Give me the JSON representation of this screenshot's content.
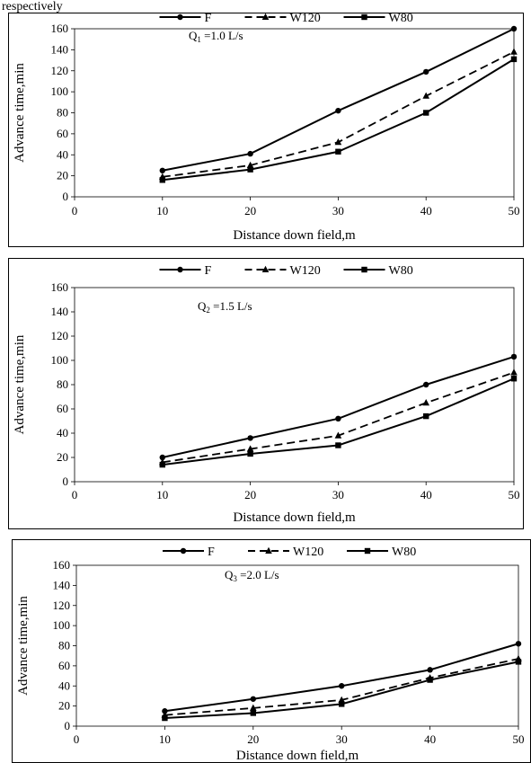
{
  "header_fragment": "respectively",
  "chart_data": [
    {
      "type": "line",
      "annotation": {
        "main": "Q",
        "sub": "1",
        "rest": " =1.0 L/s"
      },
      "xlabel": "Distance down field,m",
      "ylabel": "Advance time,min",
      "xlim": [
        0,
        50
      ],
      "ylim": [
        0,
        160
      ],
      "xticks": [
        0,
        10,
        20,
        30,
        40,
        50
      ],
      "yticks": [
        0,
        20,
        40,
        60,
        80,
        100,
        120,
        140,
        160
      ],
      "legend_position": "top",
      "x": [
        10,
        20,
        30,
        40,
        50
      ],
      "series": [
        {
          "name": "F",
          "marker": "circle",
          "dash": "solid",
          "values": [
            25,
            41,
            82,
            119,
            160
          ]
        },
        {
          "name": "W120",
          "marker": "triangle",
          "dash": "dashed",
          "values": [
            19,
            30,
            52,
            96,
            138
          ]
        },
        {
          "name": "W80",
          "marker": "square",
          "dash": "solid",
          "values": [
            16,
            26,
            43,
            80,
            131
          ]
        }
      ]
    },
    {
      "type": "line",
      "annotation": {
        "main": "Q",
        "sub": "2",
        "rest": " =1.5 L/s"
      },
      "xlabel": "Distance down field,m",
      "ylabel": "Advance time,min",
      "xlim": [
        0,
        50
      ],
      "ylim": [
        0,
        160
      ],
      "xticks": [
        0,
        10,
        20,
        30,
        40,
        50
      ],
      "yticks": [
        0,
        20,
        40,
        60,
        80,
        100,
        120,
        140,
        160
      ],
      "legend_position": "top",
      "x": [
        10,
        20,
        30,
        40,
        50
      ],
      "series": [
        {
          "name": "F",
          "marker": "circle",
          "dash": "solid",
          "values": [
            20,
            36,
            52,
            80,
            103
          ]
        },
        {
          "name": "W120",
          "marker": "triangle",
          "dash": "dashed",
          "values": [
            16,
            27,
            38,
            65,
            90
          ]
        },
        {
          "name": "W80",
          "marker": "square",
          "dash": "solid",
          "values": [
            14,
            23,
            30,
            54,
            85
          ]
        }
      ]
    },
    {
      "type": "line",
      "annotation": {
        "main": "Q",
        "sub": "3",
        "rest": " =2.0 L/s"
      },
      "xlabel": "Distance down field,m",
      "ylabel": "Advance time,min",
      "xlim": [
        0,
        50
      ],
      "ylim": [
        0,
        160
      ],
      "xticks": [
        0,
        10,
        20,
        30,
        40,
        50
      ],
      "yticks": [
        0,
        20,
        40,
        60,
        80,
        100,
        120,
        140,
        160
      ],
      "legend_position": "top",
      "x": [
        10,
        20,
        30,
        40,
        50
      ],
      "series": [
        {
          "name": "F",
          "marker": "circle",
          "dash": "solid",
          "values": [
            15,
            27,
            40,
            56,
            82
          ]
        },
        {
          "name": "W120",
          "marker": "triangle",
          "dash": "dashed",
          "values": [
            11,
            18,
            26,
            48,
            67
          ]
        },
        {
          "name": "W80",
          "marker": "square",
          "dash": "solid",
          "values": [
            8,
            13,
            22,
            46,
            64
          ]
        }
      ]
    }
  ]
}
